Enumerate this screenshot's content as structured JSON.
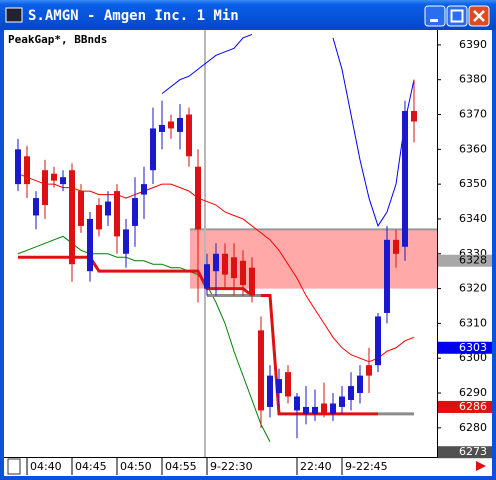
{
  "window": {
    "title": "S.AMGN - Amgen Inc. 1 Min"
  },
  "chart_data": {
    "type": "candlestick",
    "legend": "PeakGap*, BBnds",
    "xlim": [
      -1.444,
      46.556
    ],
    "xticks": [
      {
        "value": 1,
        "label": "04:40"
      },
      {
        "value": 6,
        "label": "04:45"
      },
      {
        "value": 11,
        "label": "04:50"
      },
      {
        "value": 16,
        "label": "04:55"
      },
      {
        "value": 21,
        "label": "9-22:30"
      },
      {
        "value": 31,
        "label": "22:40"
      },
      {
        "value": 36,
        "label": "9-22:45"
      }
    ],
    "ylim": [
      6272.2,
      6393.7
    ],
    "yticks": [
      6280,
      6290,
      6300,
      6310,
      6320,
      6330,
      6340,
      6350,
      6360,
      6370,
      6380,
      6390
    ],
    "up_color": "#1a1acc",
    "down_color": "#dd1111",
    "open": [
      6350,
      6358,
      6341,
      6354,
      6353,
      6350,
      6354,
      6348,
      6325,
      6344,
      6341,
      6348,
      6330,
      6338,
      6347,
      6354,
      6365,
      6368,
      6365,
      6370,
      6355,
      6320,
      6325,
      6330,
      6329,
      6328,
      6326,
      6308,
      6286,
      6290,
      6296,
      6285,
      6284,
      6284,
      6287,
      6284,
      6286,
      6288,
      6290,
      6298,
      6298,
      6313,
      6334,
      6332,
      6371
    ],
    "high": [
      6363,
      6361,
      6348,
      6357,
      6355,
      6354,
      6356,
      6350,
      6342,
      6346,
      6348,
      6350,
      6340,
      6352,
      6355,
      6372,
      6374,
      6370,
      6373,
      6372,
      6360,
      6330,
      6333,
      6333,
      6333,
      6331,
      6329,
      6312,
      6298,
      6297,
      6298,
      6290,
      6292,
      6291,
      6293,
      6290,
      6292,
      6296,
      6298,
      6303,
      6313,
      6338,
      6337,
      6374,
      6380
    ],
    "low": [
      6348,
      6346,
      6337,
      6340,
      6349,
      6348,
      6322,
      6336,
      6322,
      6335,
      6338,
      6330,
      6326,
      6332,
      6340,
      6350,
      6360,
      6363,
      6360,
      6355,
      6316,
      6318,
      6318,
      6320,
      6318,
      6318,
      6316,
      6280,
      6283,
      6286,
      6287,
      6277,
      6281,
      6282,
      6283,
      6282,
      6284,
      6285,
      6287,
      6290,
      6296,
      6310,
      6326,
      6328,
      6362
    ],
    "close": [
      6360,
      6350,
      6346,
      6344,
      6351,
      6352,
      6327,
      6338,
      6340,
      6337,
      6345,
      6335,
      6337,
      6346,
      6350,
      6366,
      6367,
      6366,
      6369,
      6358,
      6337,
      6327,
      6330,
      6324,
      6323,
      6321,
      6318,
      6285,
      6295,
      6294,
      6289,
      6289,
      6286,
      6286,
      6284,
      6287,
      6289,
      6292,
      6295,
      6295,
      6312,
      6334,
      6330,
      6371,
      6368
    ],
    "lines": [
      {
        "color": "#0000ff",
        "width": 1,
        "values": [
          null,
          null,
          null,
          null,
          null,
          null,
          null,
          null,
          null,
          null,
          null,
          null,
          null,
          null,
          null,
          null,
          6376,
          6378,
          6380,
          6381,
          6383,
          6385,
          6387,
          6388,
          6389,
          6392,
          6393,
          null,
          null,
          null,
          null,
          null,
          null,
          null,
          null,
          6392,
          6383,
          6370,
          6357,
          6346,
          6338,
          6342,
          6350,
          6368,
          6380
        ]
      },
      {
        "color": "#ff0000",
        "width": 1,
        "values": [
          6353,
          6352,
          6351,
          6350,
          6350,
          6349,
          6349,
          6348,
          6348,
          6347,
          6347,
          6347,
          6346,
          6347,
          6348,
          6349,
          6350,
          6350,
          6349,
          6348,
          6346,
          6345,
          6344,
          6342,
          6341,
          6340,
          6338,
          6336,
          6334,
          6331,
          6327,
          6323,
          6318,
          6314,
          6310,
          6306,
          6303,
          6301,
          6300,
          6299,
          6300,
          6302,
          6303,
          6305,
          6306
        ]
      },
      {
        "color": "#008000",
        "width": 1,
        "values": [
          6330,
          6331,
          6332,
          6333,
          6334,
          6335,
          6333,
          6331,
          6330,
          6330,
          6330,
          6329,
          6329,
          6328,
          6328,
          6327,
          6327,
          6326,
          6326,
          6325,
          6324,
          6321,
          6316,
          6310,
          6302,
          6295,
          6288,
          6281,
          6276,
          null,
          null,
          null,
          null,
          null,
          null,
          null,
          null,
          null,
          null,
          null,
          null,
          null,
          null,
          null,
          null
        ]
      },
      {
        "color": "#e01010",
        "width": 3,
        "values": [
          6329,
          6329,
          6329,
          6329,
          6329,
          6329,
          6329,
          6329,
          6329,
          6325,
          6325,
          6325,
          6325,
          6325,
          6325,
          6325,
          6325,
          6325,
          6325,
          6325,
          6325,
          6320,
          6320,
          6320,
          6320,
          6320,
          6318,
          6318,
          6318,
          6284,
          6284,
          6284,
          6284,
          6284,
          6284,
          6284,
          6284,
          6284,
          6284,
          6284,
          6284,
          null,
          null,
          null,
          null
        ]
      },
      {
        "color": "#8c8c8c",
        "width": 3,
        "values": [
          null,
          null,
          null,
          null,
          null,
          null,
          null,
          null,
          null,
          null,
          null,
          null,
          null,
          null,
          null,
          null,
          null,
          null,
          null,
          null,
          null,
          6318,
          6318,
          6318,
          6318,
          6318,
          6318,
          6318,
          null,
          null,
          null,
          null,
          null,
          null,
          null,
          null,
          null,
          null,
          null,
          null,
          6284,
          6284,
          6284,
          6284,
          6284
        ]
      }
    ],
    "zone": {
      "x_from": 19.1,
      "low": 6320,
      "high": 6337,
      "color": "#ff8c8c"
    },
    "price_labels": [
      {
        "value": 6328,
        "color": "#a8a8a8",
        "text_color": "#000000"
      },
      {
        "value": 6303,
        "color": "#0000ee",
        "text_color": "#ffffff"
      },
      {
        "value": 6286,
        "color": "#e01010",
        "text_color": "#ffffff"
      },
      {
        "value": 6273,
        "color": "#505050",
        "text_color": "#ffffff"
      }
    ]
  }
}
